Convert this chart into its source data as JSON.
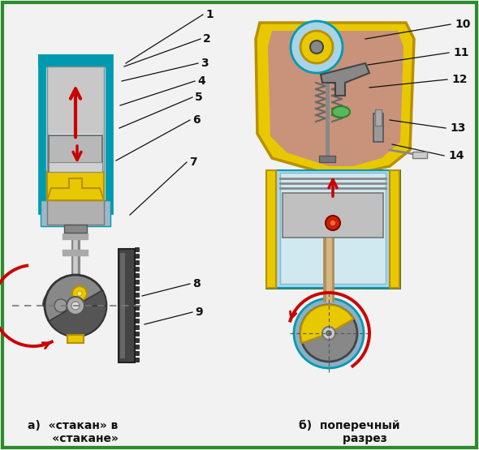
{
  "bg_color": "#f2f2f2",
  "border_color": "#2d8a2d",
  "border_width": 3,
  "title_a": "а)  «стакан» в\n      «стакане»",
  "title_b": "б)  поперечный\n        разрез",
  "arrow_color": "#cc0000",
  "line_color": "#111111",
  "cyan_dark": "#009ab0",
  "cyan_light": "#aee8f5",
  "yellow": "#e8c800",
  "yellow_dark": "#b89000",
  "gray_dark": "#555555",
  "gray_med": "#999999",
  "gray_light": "#cccccc",
  "green_dark": "#3a8c3a",
  "green_light": "#8ed88e",
  "brown": "#c49a6b",
  "blue_light": "#aad4f0"
}
